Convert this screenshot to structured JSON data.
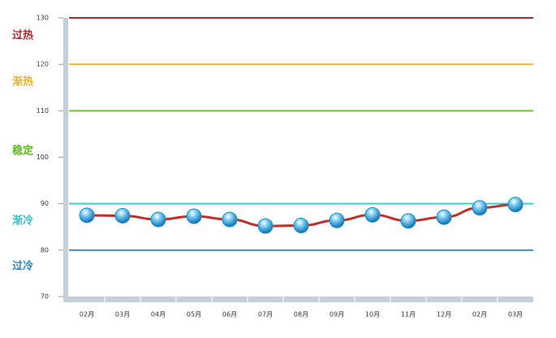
{
  "chart_data": {
    "type": "line",
    "categories": [
      "02月",
      "03月",
      "04月",
      "05月",
      "06月",
      "07月",
      "08月",
      "09月",
      "10月",
      "11月",
      "12月",
      "02月",
      "03月"
    ],
    "values": [
      87.5,
      87.4,
      86.6,
      87.3,
      86.6,
      85.2,
      85.3,
      86.4,
      87.6,
      86.3,
      87.1,
      89.1,
      89.8
    ],
    "color": "#c0302a",
    "marker_color": "#1a8fd0",
    "ylim": [
      70,
      130
    ],
    "yticks": [
      70,
      80,
      90,
      100,
      110,
      120,
      130
    ],
    "reference_lines": [
      {
        "value": 130,
        "color": "#b8262b"
      },
      {
        "value": 120,
        "color": "#f5b822"
      },
      {
        "value": 110,
        "color": "#6cc91e"
      },
      {
        "value": 90,
        "color": "#3fcfc9"
      },
      {
        "value": 80,
        "color": "#3d8ecb"
      }
    ],
    "zones": [
      {
        "label": "过热",
        "color": "#b8262b"
      },
      {
        "label": "渐热",
        "color": "#f0b21c"
      },
      {
        "label": "稳定",
        "color": "#5cbd1a"
      },
      {
        "label": "渐冷",
        "color": "#2fc3c9"
      },
      {
        "label": "过冷",
        "color": "#2a86c4"
      }
    ]
  }
}
